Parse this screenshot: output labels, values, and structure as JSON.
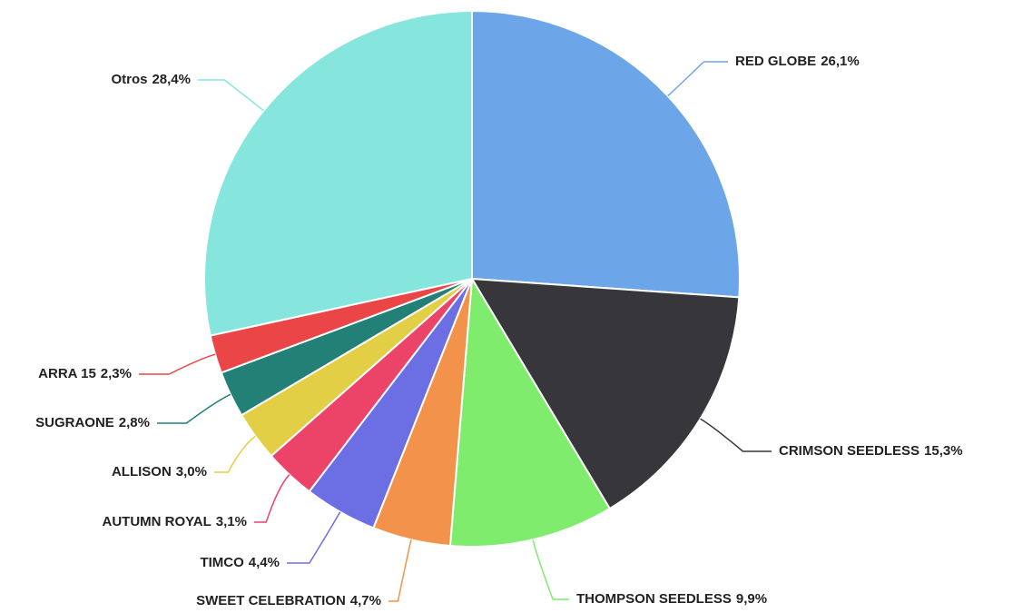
{
  "chart_data": {
    "type": "pie",
    "categories": [
      "RED GLOBE",
      "CRIMSON SEEDLESS",
      "THOMPSON SEEDLESS",
      "SWEET CELEBRATION",
      "TIMCO",
      "AUTUMN ROYAL",
      "ALLISON",
      "SUGRAONE",
      "ARRA 15",
      "Otros"
    ],
    "values": [
      26.1,
      15.3,
      9.9,
      4.7,
      4.4,
      3.1,
      3.0,
      2.8,
      2.3,
      28.4
    ],
    "value_labels": [
      "26,1%",
      "15,3%",
      "9,9%",
      "4,7%",
      "4,4%",
      "3,1%",
      "3,0%",
      "2,8%",
      "2,3%",
      "28,4%"
    ],
    "colors": [
      "#6ca6e8",
      "#37363b",
      "#80ec6e",
      "#f3934b",
      "#6c6ee4",
      "#ec4469",
      "#e2cf45",
      "#228077",
      "#ea4647",
      "#86e5dc"
    ]
  }
}
